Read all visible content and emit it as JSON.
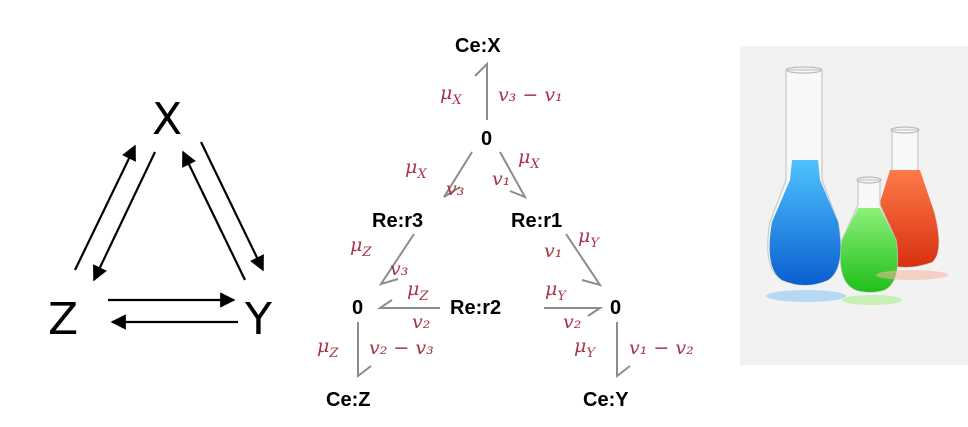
{
  "reaction_network": {
    "species": [
      "X",
      "Y",
      "Z"
    ]
  },
  "bond_graph": {
    "components": {
      "ce_x": "Ce:X",
      "ce_y": "Ce:Y",
      "ce_z": "Ce:Z",
      "re_r1": "Re:r1",
      "re_r2": "Re:r2",
      "re_r3": "Re:r3",
      "junction_top": "0",
      "junction_left": "0",
      "junction_right": "0"
    },
    "bond_labels": {
      "cex_effort": "μ",
      "cex_effort_sub": "X",
      "cex_flow": "v₃ − v₁",
      "r3_effort": "μ",
      "r3_effort_sub": "X",
      "r3_flow": "v₃",
      "r1_effort": "μ",
      "r1_effort_sub": "X",
      "r1_flow": "v₁",
      "r3z_effort": "μ",
      "r3z_effort_sub": "Z",
      "r3z_flow": "v₃",
      "r1y_effort": "μ",
      "r1y_effort_sub": "Y",
      "r1y_flow": "v₁",
      "r2z_effort": "μ",
      "r2z_effort_sub": "Z",
      "r2z_flow": "v₂",
      "r2y_effort": "μ",
      "r2y_effort_sub": "Y",
      "r2y_flow": "v₂",
      "cez_effort": "μ",
      "cez_effort_sub": "Z",
      "cez_flow": "v₂ − v₃",
      "cey_effort": "μ",
      "cey_effort_sub": "Y",
      "cey_flow": "v₁ − v₂"
    }
  },
  "photo": {
    "subject": "laboratory flasks with blue, green and red liquids"
  },
  "colors": {
    "label_red": "#a8344a",
    "bond_gray": "#8c8c8c",
    "blue_liquid": "#1a7fe0",
    "green_liquid": "#35d52a",
    "red_liquid": "#e8421f"
  }
}
